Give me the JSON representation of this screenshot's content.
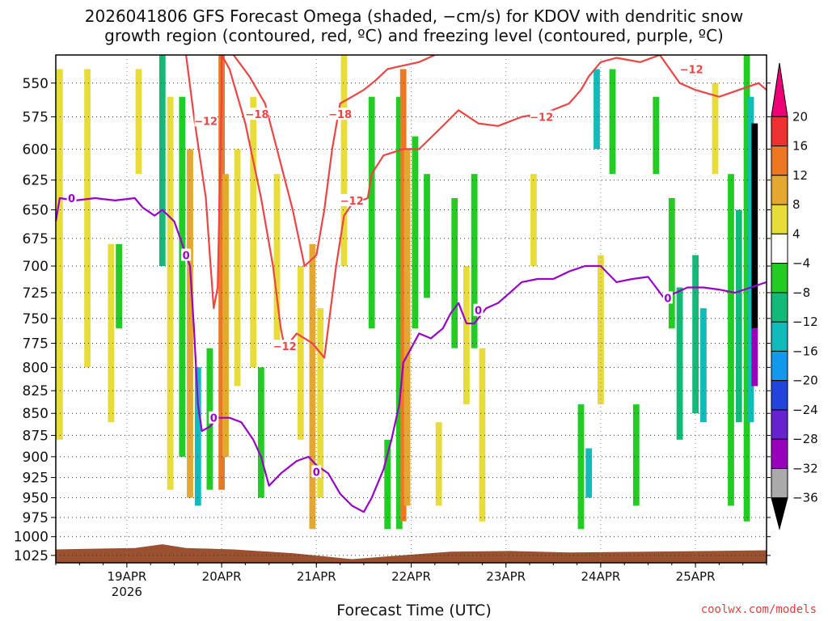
{
  "title": {
    "line1": "2026041806 GFS Forecast Omega (shaded, −cm/s) for KDOV with dendritic snow",
    "line2": "growth region (contoured, red, ºC) and freezing level (contoured, purple, ºC)"
  },
  "credit": "coolwx.com/models",
  "colors": {
    "snow_growth": "#ee4444",
    "freezing": "#9900cc",
    "terrain": "#9b5030"
  },
  "chart_data": {
    "type": "heatmap",
    "title": "2026041806 GFS Forecast Omega (shaded, −cm/s) for KDOV with dendritic snow growth region (contoured, red, ºC) and freezing level (contoured, purple, ºC)",
    "xlabel": "Forecast Time (UTC)",
    "ylabel": "",
    "x_ticks": [
      {
        "label": "19APR",
        "sub": "2026",
        "hour": 18
      },
      {
        "label": "20APR",
        "hour": 42
      },
      {
        "label": "21APR",
        "hour": 66
      },
      {
        "label": "22APR",
        "hour": 90
      },
      {
        "label": "23APR",
        "hour": 114
      },
      {
        "label": "24APR",
        "hour": 138
      },
      {
        "label": "25APR",
        "hour": 162
      }
    ],
    "xlim": [
      0,
      180
    ],
    "y_ticks": [
      550,
      575,
      600,
      625,
      650,
      675,
      700,
      725,
      750,
      775,
      800,
      825,
      850,
      875,
      900,
      925,
      950,
      975,
      1000,
      1025
    ],
    "y_tick_labels": [
      "550",
      "575",
      "600",
      "625",
      "650",
      "675",
      "700",
      "725",
      "750",
      "775",
      "800",
      "825",
      "850",
      "875",
      "900",
      "925",
      "950",
      "975",
      "1000",
      "1025"
    ],
    "ylim": [
      530,
      1035
    ],
    "y_scale": "log-pressure",
    "grid": "dotted",
    "colorbar": {
      "labels": [
        "20",
        "16",
        "12",
        "8",
        "4",
        "−4",
        "−8",
        "−12",
        "−16",
        "−20",
        "−24",
        "−28",
        "−32",
        "−36"
      ],
      "bins": [
        {
          "lo": 20,
          "hi": 24,
          "color": "#ee0077"
        },
        {
          "lo": 16,
          "hi": 20,
          "color": "#ee3030"
        },
        {
          "lo": 12,
          "hi": 16,
          "color": "#ee7722"
        },
        {
          "lo": 8,
          "hi": 12,
          "color": "#e4a830"
        },
        {
          "lo": 4,
          "hi": 8,
          "color": "#e8dc3a"
        },
        {
          "lo": -4,
          "hi": 4,
          "color": "#ffffff"
        },
        {
          "lo": -8,
          "hi": -4,
          "color": "#22cc22"
        },
        {
          "lo": -12,
          "hi": -8,
          "color": "#11bb77"
        },
        {
          "lo": -16,
          "hi": -12,
          "color": "#11bbbb"
        },
        {
          "lo": -20,
          "hi": -16,
          "color": "#1199ee"
        },
        {
          "lo": -24,
          "hi": -20,
          "color": "#2244dd"
        },
        {
          "lo": -28,
          "hi": -24,
          "color": "#6622cc"
        },
        {
          "lo": -32,
          "hi": -28,
          "color": "#9900bb"
        },
        {
          "lo": -36,
          "hi": -32,
          "color": "#aaaaaa"
        },
        {
          "lo": -40,
          "hi": -36,
          "color": "#000000"
        }
      ]
    },
    "omega_shading": [
      {
        "hour": 1,
        "p_top": 540,
        "p_bottom": 880,
        "value": 5
      },
      {
        "hour": 8,
        "p_top": 540,
        "p_bottom": 800,
        "value": 6
      },
      {
        "hour": 14,
        "p_top": 680,
        "p_bottom": 860,
        "value": 5
      },
      {
        "hour": 16,
        "p_top": 680,
        "p_bottom": 760,
        "value": -6
      },
      {
        "hour": 21,
        "p_top": 540,
        "p_bottom": 620,
        "value": 6
      },
      {
        "hour": 27,
        "p_top": 530,
        "p_bottom": 700,
        "value": -9
      },
      {
        "hour": 29,
        "p_top": 560,
        "p_bottom": 940,
        "value": 5
      },
      {
        "hour": 32,
        "p_top": 560,
        "p_bottom": 900,
        "value": -6
      },
      {
        "hour": 34,
        "p_top": 600,
        "p_bottom": 950,
        "value": 9
      },
      {
        "hour": 36,
        "p_top": 800,
        "p_bottom": 960,
        "value": -14
      },
      {
        "hour": 39,
        "p_top": 780,
        "p_bottom": 940,
        "value": -6
      },
      {
        "hour": 42,
        "p_top": 530,
        "p_bottom": 940,
        "value": 13
      },
      {
        "hour": 43,
        "p_top": 620,
        "p_bottom": 900,
        "value": 9
      },
      {
        "hour": 46,
        "p_top": 600,
        "p_bottom": 820,
        "value": 5
      },
      {
        "hour": 50,
        "p_top": 560,
        "p_bottom": 800,
        "value": 6
      },
      {
        "hour": 52,
        "p_top": 800,
        "p_bottom": 950,
        "value": -6
      },
      {
        "hour": 56,
        "p_top": 620,
        "p_bottom": 780,
        "value": 5
      },
      {
        "hour": 62,
        "p_top": 700,
        "p_bottom": 880,
        "value": 5
      },
      {
        "hour": 65,
        "p_top": 680,
        "p_bottom": 990,
        "value": 9
      },
      {
        "hour": 67,
        "p_top": 740,
        "p_bottom": 950,
        "value": 5
      },
      {
        "hour": 73,
        "p_top": 530,
        "p_bottom": 700,
        "value": 5
      },
      {
        "hour": 80,
        "p_top": 560,
        "p_bottom": 760,
        "value": -6
      },
      {
        "hour": 84,
        "p_top": 880,
        "p_bottom": 990,
        "value": -7
      },
      {
        "hour": 87,
        "p_top": 560,
        "p_bottom": 990,
        "value": -6
      },
      {
        "hour": 88,
        "p_top": 540,
        "p_bottom": 980,
        "value": 13
      },
      {
        "hour": 89,
        "p_top": 600,
        "p_bottom": 960,
        "value": 9
      },
      {
        "hour": 91,
        "p_top": 590,
        "p_bottom": 760,
        "value": -6
      },
      {
        "hour": 94,
        "p_top": 620,
        "p_bottom": 730,
        "value": -6
      },
      {
        "hour": 97,
        "p_top": 860,
        "p_bottom": 960,
        "value": 5
      },
      {
        "hour": 101,
        "p_top": 640,
        "p_bottom": 780,
        "value": -6
      },
      {
        "hour": 104,
        "p_top": 700,
        "p_bottom": 840,
        "value": 6
      },
      {
        "hour": 106,
        "p_top": 620,
        "p_bottom": 780,
        "value": -6
      },
      {
        "hour": 108,
        "p_top": 780,
        "p_bottom": 980,
        "value": 5
      },
      {
        "hour": 121,
        "p_top": 620,
        "p_bottom": 700,
        "value": 5
      },
      {
        "hour": 133,
        "p_top": 840,
        "p_bottom": 990,
        "value": -7
      },
      {
        "hour": 135,
        "p_top": 890,
        "p_bottom": 950,
        "value": -13
      },
      {
        "hour": 137,
        "p_top": 540,
        "p_bottom": 600,
        "value": -13
      },
      {
        "hour": 138,
        "p_top": 690,
        "p_bottom": 840,
        "value": 5
      },
      {
        "hour": 141,
        "p_top": 540,
        "p_bottom": 620,
        "value": -6
      },
      {
        "hour": 147,
        "p_top": 840,
        "p_bottom": 960,
        "value": -6
      },
      {
        "hour": 152,
        "p_top": 560,
        "p_bottom": 620,
        "value": -6
      },
      {
        "hour": 156,
        "p_top": 640,
        "p_bottom": 760,
        "value": -6
      },
      {
        "hour": 158,
        "p_top": 720,
        "p_bottom": 880,
        "value": -9
      },
      {
        "hour": 162,
        "p_top": 690,
        "p_bottom": 850,
        "value": -9
      },
      {
        "hour": 164,
        "p_top": 740,
        "p_bottom": 860,
        "value": -14
      },
      {
        "hour": 167,
        "p_top": 550,
        "p_bottom": 620,
        "value": 5
      },
      {
        "hour": 171,
        "p_top": 620,
        "p_bottom": 960,
        "value": -6
      },
      {
        "hour": 173,
        "p_top": 650,
        "p_bottom": 860,
        "value": -10
      },
      {
        "hour": 175,
        "p_top": 530,
        "p_bottom": 980,
        "value": -6
      },
      {
        "hour": 176,
        "p_top": 560,
        "p_bottom": 860,
        "value": -14
      },
      {
        "hour": 177,
        "p_top": 580,
        "p_bottom": 760,
        "value": -38
      },
      {
        "hour": 177,
        "p_top": 760,
        "p_bottom": 820,
        "value": -30
      }
    ],
    "snow_growth_minus12": [
      {
        "hour": 33,
        "p": 530
      },
      {
        "hour": 35,
        "p": 575
      },
      {
        "hour": 38,
        "p": 640
      },
      {
        "hour": 39,
        "p": 690
      },
      {
        "hour": 40,
        "p": 740
      },
      {
        "hour": 41,
        "p": 720
      },
      {
        "hour": 42,
        "p": 560
      },
      {
        "hour": 42,
        "p": 530
      },
      {
        "hour": 44,
        "p": 540
      },
      {
        "hour": 48,
        "p": 580
      },
      {
        "hour": 52,
        "p": 640
      },
      {
        "hour": 55,
        "p": 700
      },
      {
        "hour": 57,
        "p": 760
      },
      {
        "hour": 58,
        "p": 780
      },
      {
        "hour": 61,
        "p": 765
      },
      {
        "hour": 65,
        "p": 775
      },
      {
        "hour": 68,
        "p": 790
      },
      {
        "hour": 71,
        "p": 700
      },
      {
        "hour": 73,
        "p": 655
      },
      {
        "hour": 75,
        "p": 645
      },
      {
        "hour": 79,
        "p": 640
      },
      {
        "hour": 80,
        "p": 620
      },
      {
        "hour": 83,
        "p": 605
      },
      {
        "hour": 88,
        "p": 600
      },
      {
        "hour": 92,
        "p": 600
      },
      {
        "hour": 97,
        "p": 585
      },
      {
        "hour": 102,
        "p": 570
      },
      {
        "hour": 107,
        "p": 580
      },
      {
        "hour": 112,
        "p": 582
      },
      {
        "hour": 118,
        "p": 575
      },
      {
        "hour": 124,
        "p": 572
      },
      {
        "hour": 130,
        "p": 565
      },
      {
        "hour": 133,
        "p": 555
      },
      {
        "hour": 135,
        "p": 545
      },
      {
        "hour": 138,
        "p": 535
      },
      {
        "hour": 142,
        "p": 532
      },
      {
        "hour": 148,
        "p": 535
      },
      {
        "hour": 153,
        "p": 530
      },
      {
        "hour": 158,
        "p": 550
      },
      {
        "hour": 162,
        "p": 555
      },
      {
        "hour": 168,
        "p": 560
      },
      {
        "hour": 173,
        "p": 555
      },
      {
        "hour": 178,
        "p": 550
      },
      {
        "hour": 180,
        "p": 555
      }
    ],
    "snow_growth_minus18": [
      {
        "hour": 45,
        "p": 530
      },
      {
        "hour": 49,
        "p": 545
      },
      {
        "hour": 53,
        "p": 565
      },
      {
        "hour": 56,
        "p": 600
      },
      {
        "hour": 60,
        "p": 650
      },
      {
        "hour": 63,
        "p": 700
      },
      {
        "hour": 66,
        "p": 690
      },
      {
        "hour": 68,
        "p": 650
      },
      {
        "hour": 70,
        "p": 600
      },
      {
        "hour": 72,
        "p": 565
      },
      {
        "hour": 75,
        "p": 560
      },
      {
        "hour": 78,
        "p": 555
      },
      {
        "hour": 81,
        "p": 548
      },
      {
        "hour": 84,
        "p": 540
      },
      {
        "hour": 87,
        "p": 538
      },
      {
        "hour": 92,
        "p": 535
      },
      {
        "hour": 96,
        "p": 530
      }
    ],
    "freezing_level_0C": [
      {
        "hour": 0,
        "p": 660
      },
      {
        "hour": 1,
        "p": 640
      },
      {
        "hour": 5,
        "p": 642
      },
      {
        "hour": 10,
        "p": 640
      },
      {
        "hour": 15,
        "p": 642
      },
      {
        "hour": 20,
        "p": 640
      },
      {
        "hour": 22,
        "p": 648
      },
      {
        "hour": 25,
        "p": 655
      },
      {
        "hour": 27,
        "p": 650
      },
      {
        "hour": 30,
        "p": 660
      },
      {
        "hour": 32,
        "p": 680
      },
      {
        "hour": 34,
        "p": 700
      },
      {
        "hour": 35,
        "p": 760
      },
      {
        "hour": 36,
        "p": 840
      },
      {
        "hour": 37,
        "p": 870
      },
      {
        "hour": 39,
        "p": 865
      },
      {
        "hour": 41,
        "p": 855
      },
      {
        "hour": 44,
        "p": 855
      },
      {
        "hour": 47,
        "p": 860
      },
      {
        "hour": 50,
        "p": 880
      },
      {
        "hour": 52,
        "p": 900
      },
      {
        "hour": 54,
        "p": 935
      },
      {
        "hour": 57,
        "p": 920
      },
      {
        "hour": 61,
        "p": 905
      },
      {
        "hour": 64,
        "p": 900
      },
      {
        "hour": 66,
        "p": 910
      },
      {
        "hour": 69,
        "p": 920
      },
      {
        "hour": 72,
        "p": 945
      },
      {
        "hour": 75,
        "p": 960
      },
      {
        "hour": 78,
        "p": 968
      },
      {
        "hour": 80,
        "p": 950
      },
      {
        "hour": 83,
        "p": 915
      },
      {
        "hour": 85,
        "p": 880
      },
      {
        "hour": 87,
        "p": 840
      },
      {
        "hour": 88,
        "p": 795
      },
      {
        "hour": 90,
        "p": 780
      },
      {
        "hour": 92,
        "p": 765
      },
      {
        "hour": 95,
        "p": 770
      },
      {
        "hour": 98,
        "p": 760
      },
      {
        "hour": 100,
        "p": 745
      },
      {
        "hour": 102,
        "p": 735
      },
      {
        "hour": 104,
        "p": 755
      },
      {
        "hour": 106,
        "p": 755
      },
      {
        "hour": 109,
        "p": 740
      },
      {
        "hour": 112,
        "p": 735
      },
      {
        "hour": 115,
        "p": 725
      },
      {
        "hour": 118,
        "p": 715
      },
      {
        "hour": 122,
        "p": 712
      },
      {
        "hour": 126,
        "p": 712
      },
      {
        "hour": 130,
        "p": 705
      },
      {
        "hour": 134,
        "p": 700
      },
      {
        "hour": 138,
        "p": 700
      },
      {
        "hour": 142,
        "p": 715
      },
      {
        "hour": 146,
        "p": 712
      },
      {
        "hour": 150,
        "p": 710
      },
      {
        "hour": 154,
        "p": 730
      },
      {
        "hour": 157,
        "p": 725
      },
      {
        "hour": 160,
        "p": 720
      },
      {
        "hour": 164,
        "p": 720
      },
      {
        "hour": 168,
        "p": 722
      },
      {
        "hour": 172,
        "p": 725
      },
      {
        "hour": 176,
        "p": 720
      },
      {
        "hour": 180,
        "p": 715
      }
    ],
    "contour_labels": [
      {
        "text": "−12",
        "hour": 38,
        "p": 578,
        "series": "snow_growth"
      },
      {
        "text": "−18",
        "hour": 51,
        "p": 573,
        "series": "snow_growth"
      },
      {
        "text": "−18",
        "hour": 72,
        "p": 573,
        "series": "snow_growth"
      },
      {
        "text": "−12",
        "hour": 75,
        "p": 642,
        "series": "snow_growth"
      },
      {
        "text": "−12",
        "hour": 58,
        "p": 778,
        "series": "snow_growth"
      },
      {
        "text": "−12",
        "hour": 123,
        "p": 575,
        "series": "snow_growth"
      },
      {
        "text": "−12",
        "hour": 161,
        "p": 540,
        "series": "snow_growth"
      },
      {
        "text": "0",
        "hour": 4,
        "p": 640,
        "series": "freezing"
      },
      {
        "text": "0",
        "hour": 33,
        "p": 690,
        "series": "freezing"
      },
      {
        "text": "0",
        "hour": 40,
        "p": 855,
        "series": "freezing"
      },
      {
        "text": "0",
        "hour": 66,
        "p": 918,
        "series": "freezing"
      },
      {
        "text": "0",
        "hour": 107,
        "p": 742,
        "series": "freezing"
      },
      {
        "text": "0",
        "hour": 155,
        "p": 730,
        "series": "freezing"
      }
    ],
    "terrain": [
      {
        "hour": 0,
        "p": 1017
      },
      {
        "hour": 20,
        "p": 1015
      },
      {
        "hour": 27,
        "p": 1010
      },
      {
        "hour": 33,
        "p": 1015
      },
      {
        "hour": 45,
        "p": 1017
      },
      {
        "hour": 60,
        "p": 1022
      },
      {
        "hour": 75,
        "p": 1030
      },
      {
        "hour": 85,
        "p": 1026
      },
      {
        "hour": 100,
        "p": 1020
      },
      {
        "hour": 115,
        "p": 1019
      },
      {
        "hour": 130,
        "p": 1021
      },
      {
        "hour": 150,
        "p": 1020
      },
      {
        "hour": 180,
        "p": 1018
      }
    ]
  }
}
